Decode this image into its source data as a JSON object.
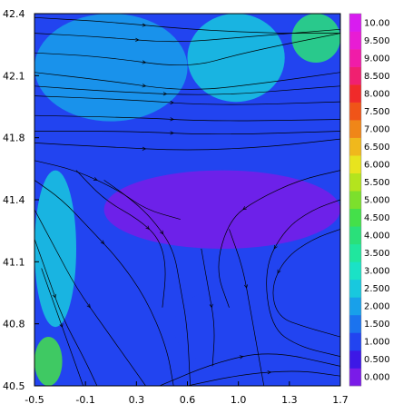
{
  "chart_data": {
    "type": "heatmap",
    "subtype": "filled contour map with streamlines",
    "title": "",
    "xlabel": "",
    "ylabel": "",
    "xlim": [
      -0.5,
      1.7
    ],
    "ylim": [
      40.5,
      42.4
    ],
    "x_ticks": [
      "-0.5",
      "-0.1",
      "0.3",
      "0.6",
      "1.0",
      "1.3",
      "1.7"
    ],
    "y_ticks": [
      "40.5",
      "40.8",
      "41.1",
      "41.4",
      "41.8",
      "42.1",
      "42.4"
    ],
    "colorbar": {
      "levels": [
        "0.000",
        "0.500",
        "1.000",
        "1.500",
        "2.000",
        "2.500",
        "3.000",
        "3.500",
        "4.000",
        "4.500",
        "5.000",
        "5.500",
        "6.000",
        "6.500",
        "7.000",
        "7.500",
        "8.000",
        "8.500",
        "9.000",
        "9.500",
        "10.00"
      ],
      "colors": [
        "#7a1be8",
        "#3d18e6",
        "#2244f0",
        "#1b73ee",
        "#18a0ea",
        "#18c8de",
        "#1ae2c6",
        "#20e69e",
        "#2ae07a",
        "#44e04a",
        "#7ce02c",
        "#b4e41e",
        "#e8e41e",
        "#f0b81c",
        "#f08618",
        "#f05418",
        "#f02a2a",
        "#f02070",
        "#f01ca8",
        "#e81cd4",
        "#d81cf0"
      ]
    },
    "field_patches": [
      {
        "region": "northwest band",
        "x": [
          -0.5,
          0.6
        ],
        "y": [
          41.85,
          42.4
        ],
        "level": "2.000"
      },
      {
        "region": "north-central band",
        "x": [
          0.6,
          1.3
        ],
        "y": [
          41.95,
          42.4
        ],
        "level": "2.500"
      },
      {
        "region": "northeast pocket",
        "x": [
          1.35,
          1.7
        ],
        "y": [
          42.15,
          42.4
        ],
        "level": "4.000"
      },
      {
        "region": "central high ridge",
        "x": [
          0.0,
          1.7
        ],
        "y": [
          41.2,
          41.6
        ],
        "level": "0.000"
      },
      {
        "region": "southwest corner",
        "x": [
          -0.5,
          -0.3
        ],
        "y": [
          40.5,
          40.75
        ],
        "level": "4.500"
      },
      {
        "region": "western margin",
        "x": [
          -0.5,
          -0.2
        ],
        "y": [
          40.8,
          41.6
        ],
        "level": "2.500"
      },
      {
        "region": "south-central lowland",
        "x": [
          0.5,
          1.3
        ],
        "y": [
          40.6,
          41.0
        ],
        "level": "1.000"
      }
    ],
    "streamlines": [
      [
        [
          -0.5,
          42.38
        ],
        [
          0.0,
          42.36
        ],
        [
          0.6,
          42.32
        ],
        [
          1.2,
          42.3
        ],
        [
          1.7,
          42.3
        ]
      ],
      [
        [
          -0.5,
          42.3
        ],
        [
          0.0,
          42.28
        ],
        [
          0.5,
          42.25
        ],
        [
          1.0,
          42.28
        ],
        [
          1.7,
          42.32
        ]
      ],
      [
        [
          -0.5,
          42.2
        ],
        [
          0.0,
          42.18
        ],
        [
          0.6,
          42.12
        ],
        [
          1.0,
          42.2
        ],
        [
          1.7,
          42.3
        ]
      ],
      [
        [
          -0.5,
          42.1
        ],
        [
          0.0,
          42.06
        ],
        [
          0.6,
          42.0
        ],
        [
          1.2,
          42.05
        ],
        [
          1.7,
          42.1
        ]
      ],
      [
        [
          -0.5,
          41.98
        ],
        [
          0.2,
          41.96
        ],
        [
          0.8,
          41.93
        ],
        [
          1.7,
          41.95
        ]
      ],
      [
        [
          -0.5,
          41.88
        ],
        [
          0.2,
          41.87
        ],
        [
          0.8,
          41.85
        ],
        [
          1.7,
          41.86
        ]
      ],
      [
        [
          -0.5,
          41.8
        ],
        [
          0.2,
          41.8
        ],
        [
          0.8,
          41.78
        ],
        [
          1.7,
          41.8
        ]
      ],
      [
        [
          -0.5,
          41.74
        ],
        [
          0.0,
          41.72
        ],
        [
          0.6,
          41.7
        ],
        [
          1.2,
          41.72
        ],
        [
          1.7,
          41.76
        ]
      ],
      [
        [
          -0.5,
          41.65
        ],
        [
          -0.2,
          41.6
        ],
        [
          0.1,
          41.5
        ],
        [
          0.3,
          41.4
        ],
        [
          0.55,
          41.35
        ]
      ],
      [
        [
          -0.5,
          41.55
        ],
        [
          -0.3,
          41.45
        ],
        [
          -0.1,
          41.3
        ],
        [
          0.1,
          41.15
        ],
        [
          0.3,
          40.95
        ],
        [
          0.45,
          40.7
        ],
        [
          0.5,
          40.5
        ]
      ],
      [
        [
          -0.5,
          41.4
        ],
        [
          -0.35,
          41.2
        ],
        [
          -0.2,
          41.0
        ],
        [
          0.0,
          40.8
        ],
        [
          0.2,
          40.6
        ],
        [
          0.3,
          40.5
        ]
      ],
      [
        [
          -0.5,
          41.25
        ],
        [
          -0.4,
          41.05
        ],
        [
          -0.3,
          40.85
        ],
        [
          -0.15,
          40.65
        ],
        [
          -0.05,
          40.5
        ]
      ],
      [
        [
          -0.45,
          41.1
        ],
        [
          -0.35,
          40.9
        ],
        [
          -0.25,
          40.7
        ],
        [
          -0.15,
          40.5
        ]
      ],
      [
        [
          0.0,
          41.55
        ],
        [
          0.2,
          41.45
        ],
        [
          0.35,
          41.35
        ],
        [
          0.5,
          41.2
        ],
        [
          0.55,
          41.0
        ],
        [
          0.6,
          40.8
        ],
        [
          0.62,
          40.5
        ]
      ],
      [
        [
          0.9,
          41.3
        ],
        [
          1.0,
          41.1
        ],
        [
          1.05,
          40.9
        ],
        [
          1.1,
          40.7
        ],
        [
          1.15,
          40.5
        ]
      ],
      [
        [
          1.7,
          41.3
        ],
        [
          1.5,
          41.25
        ],
        [
          1.3,
          41.15
        ],
        [
          1.2,
          41.0
        ],
        [
          1.25,
          40.85
        ],
        [
          1.45,
          40.8
        ],
        [
          1.7,
          40.75
        ]
      ],
      [
        [
          1.7,
          41.45
        ],
        [
          1.5,
          41.4
        ],
        [
          1.3,
          41.3
        ],
        [
          1.15,
          41.1
        ],
        [
          1.2,
          40.8
        ],
        [
          1.4,
          40.7
        ],
        [
          1.7,
          40.65
        ]
      ],
      [
        [
          1.7,
          41.6
        ],
        [
          1.4,
          41.55
        ],
        [
          1.1,
          41.45
        ],
        [
          0.9,
          41.35
        ],
        [
          0.8,
          41.1
        ],
        [
          0.9,
          40.9
        ]
      ],
      [
        [
          0.4,
          40.5
        ],
        [
          0.8,
          40.62
        ],
        [
          1.2,
          40.68
        ],
        [
          1.7,
          40.6
        ]
      ],
      [
        [
          0.6,
          40.5
        ],
        [
          1.0,
          40.56
        ],
        [
          1.4,
          40.58
        ],
        [
          1.7,
          40.55
        ]
      ],
      [
        [
          -0.5,
          42.03
        ],
        [
          0.1,
          42.0
        ],
        [
          0.8,
          41.98
        ],
        [
          1.5,
          42.02
        ],
        [
          1.7,
          42.03
        ]
      ],
      [
        [
          -0.2,
          41.6
        ],
        [
          0.0,
          41.45
        ],
        [
          0.25,
          41.35
        ],
        [
          0.4,
          41.25
        ],
        [
          0.45,
          41.1
        ],
        [
          0.42,
          40.9
        ]
      ],
      [
        [
          0.7,
          41.2
        ],
        [
          0.75,
          41.0
        ],
        [
          0.8,
          40.8
        ],
        [
          0.78,
          40.6
        ]
      ]
    ]
  }
}
